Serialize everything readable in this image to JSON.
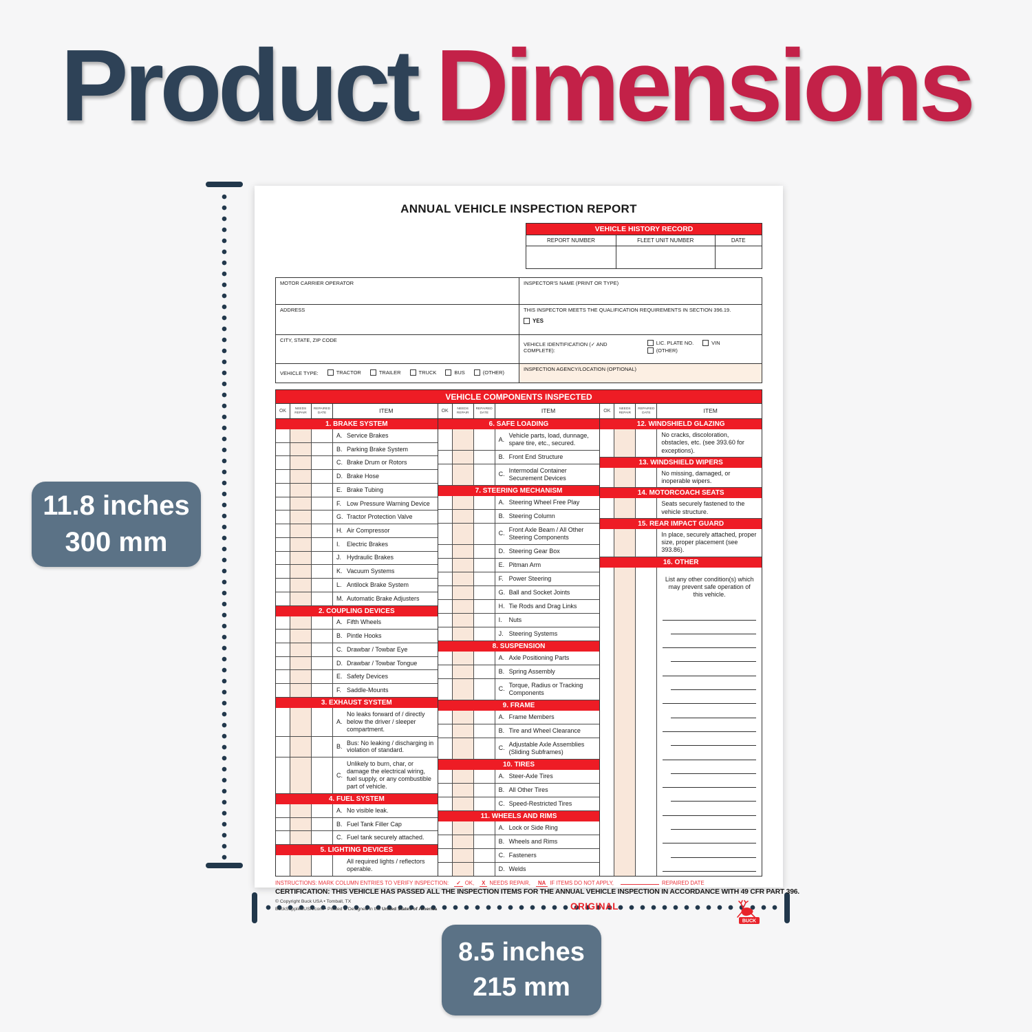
{
  "page": {
    "title": {
      "part1": "Product",
      "part2": "Dimensions",
      "color1": "#2e4257",
      "color2": "#c32148"
    },
    "background": "#f6f6f7"
  },
  "dimensions": {
    "height": {
      "line1": "11.8 inches",
      "line2": "300 mm"
    },
    "width": {
      "line1": "8.5 inches",
      "line2": "215 mm"
    },
    "badge_color": "#5b7286",
    "line_color": "#22384c"
  },
  "form": {
    "title": "ANNUAL VEHICLE INSPECTION REPORT",
    "accent_red": "#ee1c25",
    "history": {
      "title": "VEHICLE HISTORY RECORD",
      "columns": [
        "REPORT NUMBER",
        "FLEET UNIT NUMBER",
        "DATE"
      ]
    },
    "info": {
      "motor_carrier_label": "MOTOR CARRIER OPERATOR",
      "address_label": "ADDRESS",
      "city_label": "CITY, STATE, ZIP CODE",
      "vehicle_type_label": "VEHICLE TYPE:",
      "vehicle_types": [
        "TRACTOR",
        "TRAILER",
        "TRUCK",
        "BUS",
        "(OTHER)"
      ],
      "inspector_name_label": "INSPECTOR'S NAME (PRINT OR TYPE)",
      "qualification_text": "THIS INSPECTOR MEETS THE QUALIFICATION REQUIREMENTS IN SECTION 396.19.",
      "yes_label": "YES",
      "vehicle_id_label": "VEHICLE IDENTIFICATION (✓ AND COMPLETE):",
      "vehicle_id_options": [
        "LIC. PLATE NO.",
        "VIN",
        "(OTHER)"
      ],
      "agency_label": "INSPECTION AGENCY/LOCATION (OPTIONAL)"
    },
    "components": {
      "banner": "VEHICLE COMPONENTS INSPECTED",
      "col_headers": {
        "ok": "OK",
        "needs_repair": "NEEDS REPAIR",
        "repaired_date": "REPAIRED DATE",
        "item": "ITEM"
      },
      "columns": [
        {
          "sections": [
            {
              "title": "1. BRAKE SYSTEM",
              "items": [
                {
                  "letter": "A.",
                  "text": "Service Brakes"
                },
                {
                  "letter": "B.",
                  "text": "Parking Brake System"
                },
                {
                  "letter": "C.",
                  "text": "Brake Drum or Rotors"
                },
                {
                  "letter": "D.",
                  "text": "Brake Hose"
                },
                {
                  "letter": "E.",
                  "text": "Brake Tubing"
                },
                {
                  "letter": "F.",
                  "text": "Low Pressure Warning Device"
                },
                {
                  "letter": "G.",
                  "text": "Tractor Protection Valve"
                },
                {
                  "letter": "H.",
                  "text": "Air Compressor"
                },
                {
                  "letter": "I.",
                  "text": "Electric Brakes"
                },
                {
                  "letter": "J.",
                  "text": "Hydraulic Brakes"
                },
                {
                  "letter": "K.",
                  "text": "Vacuum Systems"
                },
                {
                  "letter": "L.",
                  "text": "Antilock Brake System"
                },
                {
                  "letter": "M.",
                  "text": "Automatic Brake Adjusters"
                }
              ]
            },
            {
              "title": "2. COUPLING DEVICES",
              "items": [
                {
                  "letter": "A.",
                  "text": "Fifth Wheels"
                },
                {
                  "letter": "B.",
                  "text": "Pintle Hooks"
                },
                {
                  "letter": "C.",
                  "text": "Drawbar / Towbar Eye"
                },
                {
                  "letter": "D.",
                  "text": "Drawbar / Towbar Tongue"
                },
                {
                  "letter": "E.",
                  "text": "Safety Devices"
                },
                {
                  "letter": "F.",
                  "text": "Saddle-Mounts"
                }
              ]
            },
            {
              "title": "3. EXHAUST SYSTEM",
              "items": [
                {
                  "letter": "A.",
                  "text": "No leaks forward of / directly below the driver / sleeper compartment."
                },
                {
                  "letter": "B.",
                  "text": "Bus: No leaking / discharging in violation of standard."
                },
                {
                  "letter": "C.",
                  "text": "Unlikely to burn, char, or damage the electrical wiring, fuel supply, or any combustible part of vehicle."
                }
              ]
            },
            {
              "title": "4. FUEL SYSTEM",
              "items": [
                {
                  "letter": "A.",
                  "text": "No visible leak."
                },
                {
                  "letter": "B.",
                  "text": "Fuel Tank Filler Cap"
                },
                {
                  "letter": "C.",
                  "text": "Fuel tank securely attached."
                }
              ]
            },
            {
              "title": "5. LIGHTING DEVICES",
              "items": [
                {
                  "letter": "",
                  "text": "All required lights / reflectors operable."
                }
              ]
            }
          ]
        },
        {
          "sections": [
            {
              "title": "6. SAFE LOADING",
              "items": [
                {
                  "letter": "A.",
                  "text": "Vehicle parts, load, dunnage, spare tire, etc., secured."
                },
                {
                  "letter": "B.",
                  "text": "Front End Structure"
                },
                {
                  "letter": "C.",
                  "text": "Intermodal Container Securement Devices"
                }
              ]
            },
            {
              "title": "7. STEERING MECHANISM",
              "items": [
                {
                  "letter": "A.",
                  "text": "Steering Wheel Free Play"
                },
                {
                  "letter": "B.",
                  "text": "Steering Column"
                },
                {
                  "letter": "C.",
                  "text": "Front Axle Beam / All Other Steering Components"
                },
                {
                  "letter": "D.",
                  "text": "Steering Gear Box"
                },
                {
                  "letter": "E.",
                  "text": "Pitman Arm"
                },
                {
                  "letter": "F.",
                  "text": "Power Steering"
                },
                {
                  "letter": "G.",
                  "text": "Ball and Socket Joints"
                },
                {
                  "letter": "H.",
                  "text": "Tie Rods and Drag Links"
                },
                {
                  "letter": "I.",
                  "text": "Nuts"
                },
                {
                  "letter": "J.",
                  "text": "Steering Systems"
                }
              ]
            },
            {
              "title": "8. SUSPENSION",
              "items": [
                {
                  "letter": "A.",
                  "text": "Axle Positioning Parts"
                },
                {
                  "letter": "B.",
                  "text": "Spring Assembly"
                },
                {
                  "letter": "C.",
                  "text": "Torque, Radius or Tracking Components"
                }
              ]
            },
            {
              "title": "9. FRAME",
              "items": [
                {
                  "letter": "A.",
                  "text": "Frame Members"
                },
                {
                  "letter": "B.",
                  "text": "Tire and Wheel Clearance"
                },
                {
                  "letter": "C.",
                  "text": "Adjustable Axle Assemblies (Sliding Subframes)"
                }
              ]
            },
            {
              "title": "10. TIRES",
              "items": [
                {
                  "letter": "A.",
                  "text": "Steer-Axle Tires"
                },
                {
                  "letter": "B.",
                  "text": "All Other Tires"
                },
                {
                  "letter": "C.",
                  "text": "Speed-Restricted Tires"
                }
              ]
            },
            {
              "title": "11. WHEELS AND RIMS",
              "items": [
                {
                  "letter": "A.",
                  "text": "Lock or Side Ring"
                },
                {
                  "letter": "B.",
                  "text": "Wheels and Rims"
                },
                {
                  "letter": "C.",
                  "text": "Fasteners"
                },
                {
                  "letter": "D.",
                  "text": "Welds"
                }
              ]
            }
          ]
        },
        {
          "sections": [
            {
              "title": "12. WINDSHIELD GLAZING",
              "note": "No cracks, discoloration, obstacles, etc. (see 393.60 for exceptions)."
            },
            {
              "title": "13. WINDSHIELD WIPERS",
              "note": "No missing, damaged, or inoperable wipers."
            },
            {
              "title": "14. MOTORCOACH SEATS",
              "note": "Seats securely fastened to the vehicle structure."
            },
            {
              "title": "15. REAR IMPACT GUARD",
              "note": "In place, securely attached, proper size, proper placement (see 393.86)."
            },
            {
              "title": "16. OTHER",
              "note": "List any other condition(s) which may prevent safe operation of this vehicle.",
              "lines": 19
            }
          ]
        }
      ]
    },
    "footer": {
      "instructions": {
        "prefix": "INSTRUCTIONS: MARK COLUMN ENTRIES TO VERIFY INSPECTION:",
        "marks": [
          {
            "mark": "✓",
            "label": "OK,"
          },
          {
            "mark": "X",
            "label": "NEEDS REPAIR,"
          },
          {
            "mark": "NA",
            "label": "IF ITEMS DO NOT APPLY,"
          }
        ],
        "blank_label": "REPAIRED DATE"
      },
      "certification": "CERTIFICATION: THIS VEHICLE HAS PASSED ALL THE INSPECTION ITEMS FOR THE ANNUAL VEHICLE INSPECTION IN ACCORDANCE WITH 49 CFR PART 396.",
      "copyright_line1": "© Copyright Buck USA • Tomball, TX",
      "copyright_line2_prefix": "BuckSuppliesUSA.com • Printed & Designed in the ",
      "copyright_line2_bold": "United States of America",
      "original_label": "ORIGINAL",
      "logo_text": "BUCK"
    }
  }
}
